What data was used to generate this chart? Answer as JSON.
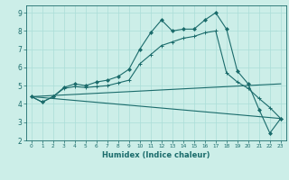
{
  "xlabel": "Humidex (Indice chaleur)",
  "background_color": "#cceee8",
  "grid_color": "#aaddd8",
  "line_color": "#1a6b6b",
  "xlim": [
    -0.5,
    23.5
  ],
  "ylim": [
    2,
    9.4
  ],
  "xticks": [
    0,
    1,
    2,
    3,
    4,
    5,
    6,
    7,
    8,
    9,
    10,
    11,
    12,
    13,
    14,
    15,
    16,
    17,
    18,
    19,
    20,
    21,
    22,
    23
  ],
  "yticks": [
    2,
    3,
    4,
    5,
    6,
    7,
    8,
    9
  ],
  "line1_x": [
    0,
    1,
    2,
    3,
    4,
    5,
    6,
    7,
    8,
    9,
    10,
    11,
    12,
    13,
    14,
    15,
    16,
    17,
    18,
    19,
    20,
    21,
    22,
    23
  ],
  "line1_y": [
    4.4,
    4.1,
    4.4,
    4.9,
    5.1,
    5.0,
    5.2,
    5.3,
    5.5,
    5.9,
    7.0,
    7.9,
    8.6,
    8.0,
    8.1,
    8.1,
    8.6,
    9.0,
    8.1,
    5.8,
    5.1,
    3.7,
    2.4,
    3.2
  ],
  "line2_x": [
    0,
    1,
    2,
    3,
    4,
    5,
    6,
    7,
    8,
    9,
    10,
    11,
    12,
    13,
    14,
    15,
    16,
    17,
    18,
    19,
    20,
    21,
    22,
    23
  ],
  "line2_y": [
    4.4,
    4.1,
    4.4,
    4.85,
    4.95,
    4.9,
    4.95,
    5.0,
    5.15,
    5.3,
    6.2,
    6.7,
    7.2,
    7.4,
    7.6,
    7.7,
    7.9,
    8.0,
    5.7,
    5.2,
    4.85,
    4.3,
    3.8,
    3.2
  ],
  "line3_x": [
    0,
    23
  ],
  "line3_y": [
    4.4,
    5.1
  ],
  "line4_x": [
    0,
    23
  ],
  "line4_y": [
    4.4,
    3.2
  ]
}
